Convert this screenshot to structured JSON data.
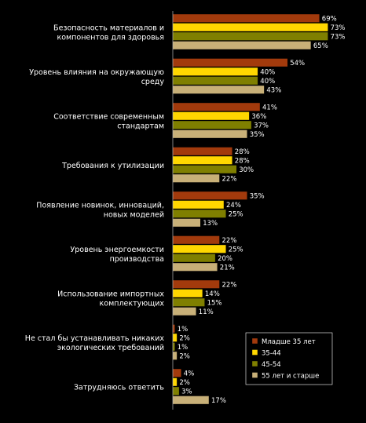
{
  "chart_data": {
    "type": "bar",
    "orientation": "horizontal",
    "title": "",
    "xlabel": "",
    "ylabel": "",
    "xlim": [
      0,
      75
    ],
    "grid": false,
    "legend_position": "bottom-right",
    "value_suffix": "%",
    "categories": [
      [
        "Безопасность материалов и",
        "компонентов для здоровья"
      ],
      [
        "Уровень влияния на окружающую",
        "среду"
      ],
      [
        "Соответствие современным",
        "стандартам"
      ],
      [
        "Требования к утилизации"
      ],
      [
        "Появление новинок, инноваций,",
        "новых моделей"
      ],
      [
        "Уровень энергоемкости",
        "производства"
      ],
      [
        "Использование импортных",
        "комплектующих"
      ],
      [
        "Не стал бы устанавливать никаких",
        "экологических требований"
      ],
      [
        "Затрудняюсь ответить"
      ]
    ],
    "series": [
      {
        "name": "Младше 35 лет",
        "color": "#a23a0c",
        "values": [
          69,
          54,
          41,
          28,
          35,
          22,
          22,
          1,
          4
        ]
      },
      {
        "name": "35-44",
        "color": "#ffd700",
        "values": [
          73,
          40,
          36,
          28,
          24,
          25,
          14,
          2,
          2
        ]
      },
      {
        "name": "45-54",
        "color": "#7f7f00",
        "values": [
          73,
          40,
          37,
          30,
          25,
          20,
          15,
          1,
          3
        ]
      },
      {
        "name": "55 лет и старше",
        "color": "#c8b078",
        "values": [
          65,
          43,
          35,
          22,
          13,
          21,
          11,
          2,
          17
        ]
      }
    ]
  }
}
